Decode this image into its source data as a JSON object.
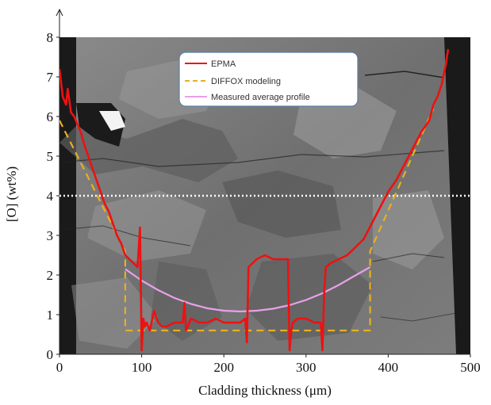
{
  "chart_data": {
    "type": "line",
    "xlabel": "Cladding thickness (μm)",
    "ylabel": "[O] (wt%)",
    "xlim": [
      0,
      500
    ],
    "ylim": [
      0,
      8
    ],
    "x_ticks": [
      "0",
      "100",
      "200",
      "300",
      "400",
      "500"
    ],
    "y_ticks": [
      "0",
      "1",
      "2",
      "3",
      "4",
      "5",
      "6",
      "7",
      "8"
    ],
    "x_tick_values": [
      0,
      100,
      200,
      300,
      400,
      500
    ],
    "y_tick_values": [
      0,
      1,
      2,
      3,
      4,
      5,
      6,
      7,
      8
    ],
    "legend_position": "top-center",
    "background": "micrograph",
    "reference_line": {
      "y": 4,
      "style": "dotted",
      "color": "#ffffff"
    },
    "series": [
      {
        "name": "EPMA",
        "color": "#ee1111",
        "style": "solid",
        "x": [
          0,
          4,
          8,
          10,
          14,
          18,
          22,
          26,
          30,
          35,
          40,
          45,
          50,
          55,
          60,
          65,
          70,
          75,
          80,
          85,
          90,
          95,
          98,
          100,
          102,
          104,
          106,
          110,
          115,
          120,
          125,
          130,
          140,
          150,
          152,
          154,
          160,
          170,
          180,
          190,
          200,
          210,
          220,
          226,
          228,
          230,
          235,
          240,
          250,
          260,
          270,
          278,
          280,
          282,
          284,
          290,
          300,
          310,
          318,
          320,
          322,
          324,
          330,
          340,
          350,
          360,
          370,
          380,
          390,
          400,
          410,
          420,
          430,
          440,
          450,
          455,
          460,
          465,
          470,
          473
        ],
        "values": [
          7.2,
          6.5,
          6.3,
          6.7,
          6.1,
          6.0,
          5.8,
          5.6,
          5.3,
          5.0,
          4.7,
          4.4,
          4.1,
          3.8,
          3.6,
          3.3,
          3.0,
          2.8,
          2.5,
          2.4,
          2.3,
          2.2,
          3.2,
          0.1,
          0.9,
          0.7,
          0.8,
          0.6,
          1.1,
          0.8,
          0.7,
          0.7,
          0.8,
          0.8,
          1.3,
          0.6,
          0.9,
          0.8,
          0.8,
          0.9,
          0.8,
          0.8,
          0.8,
          0.9,
          0.3,
          2.2,
          2.3,
          2.4,
          2.5,
          2.4,
          2.4,
          2.4,
          0.1,
          0.6,
          0.8,
          0.9,
          0.9,
          0.8,
          0.8,
          0.1,
          1.5,
          2.2,
          2.3,
          2.4,
          2.5,
          2.7,
          2.9,
          3.3,
          3.7,
          4.1,
          4.4,
          4.8,
          5.2,
          5.6,
          5.9,
          6.3,
          6.5,
          6.8,
          7.3,
          7.7
        ]
      },
      {
        "name": "DIFFOX modeling",
        "color": "#e8b020",
        "style": "dashed",
        "x": [
          0,
          80,
          80,
          378,
          378,
          455
        ],
        "values": [
          5.9,
          2.6,
          0.6,
          0.6,
          2.6,
          6.2
        ]
      },
      {
        "name": "Measured average profile",
        "color": "#e8a0e8",
        "style": "solid",
        "x": [
          80,
          100,
          120,
          140,
          160,
          180,
          200,
          220,
          240,
          260,
          280,
          300,
          320,
          340,
          360,
          378
        ],
        "values": [
          2.15,
          1.86,
          1.62,
          1.42,
          1.27,
          1.16,
          1.1,
          1.08,
          1.1,
          1.15,
          1.24,
          1.37,
          1.54,
          1.75,
          1.99,
          2.2
        ]
      }
    ]
  }
}
